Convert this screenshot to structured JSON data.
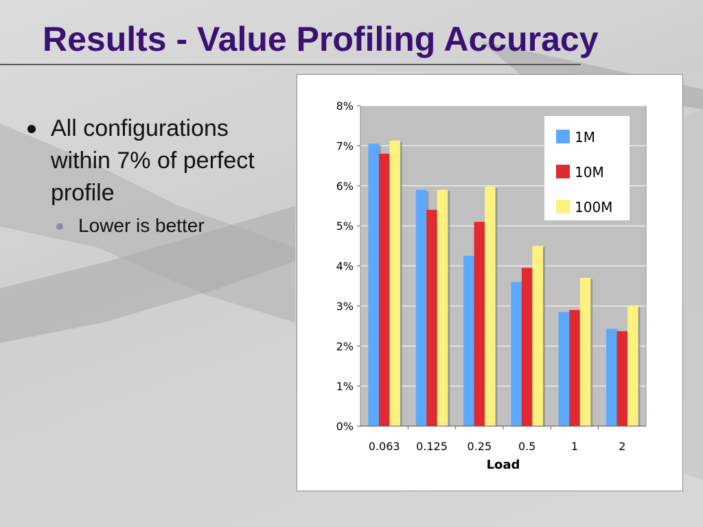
{
  "slide": {
    "title": "Results - Value Profiling Accuracy",
    "bullets": [
      {
        "text": "All configurations within 7% of perfect profile",
        "sub": [
          "Lower is better"
        ]
      }
    ]
  },
  "chart_data": {
    "type": "bar",
    "xlabel": "Load",
    "ylabel": "",
    "categories": [
      "0.063",
      "0.125",
      "0.25",
      "0.5",
      "1",
      "2"
    ],
    "series": [
      {
        "name": "1M",
        "color": "#5aa8ff",
        "values": [
          7.05,
          5.9,
          4.25,
          3.6,
          2.85,
          2.43
        ]
      },
      {
        "name": "10M",
        "color": "#e02a30",
        "values": [
          6.8,
          5.4,
          5.1,
          3.95,
          2.9,
          2.37
        ]
      },
      {
        "name": "100M",
        "color": "#fdf27e",
        "values": [
          7.13,
          5.9,
          5.98,
          4.5,
          3.7,
          3.0
        ]
      }
    ],
    "ylim": [
      0,
      8
    ],
    "yticks": [
      "0%",
      "1%",
      "2%",
      "3%",
      "4%",
      "5%",
      "6%",
      "7%",
      "8%"
    ],
    "grid": true,
    "legend": "top-right"
  }
}
